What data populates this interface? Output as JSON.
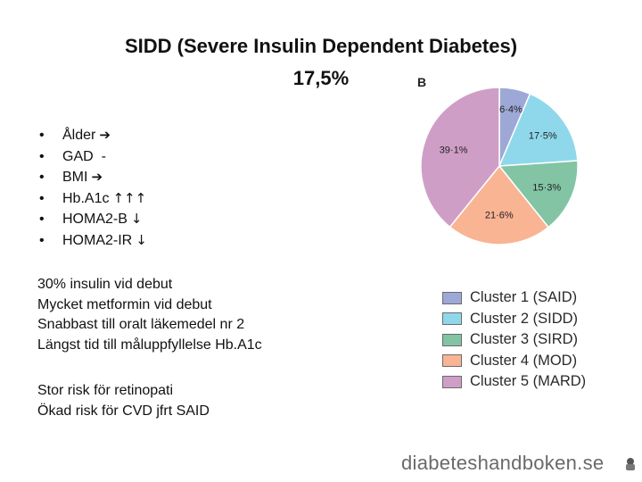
{
  "slide": {
    "title": "SIDD (Severe Insulin Dependent Diabetes)",
    "subtitle": "17,5%",
    "bullets": [
      {
        "text": "Ålder",
        "arrow": "➔"
      },
      {
        "text": "GAD  -",
        "arrow": ""
      },
      {
        "text": "BMI",
        "arrow": "➔"
      },
      {
        "text": "Hb.A1c",
        "arrow": "↑↑↑"
      },
      {
        "text": "HOMA2-B",
        "arrow": "↓"
      },
      {
        "text": "HOMA2-IR",
        "arrow": "↓"
      }
    ],
    "paragraph1": [
      "30% insulin vid debut",
      "Mycket metformin vid debut",
      "Snabbast till oralt läkemedel nr 2",
      "Längst tid till måluppfyllelse Hb.A1c"
    ],
    "paragraph2": [
      "Stor risk för retinopati",
      "Ökad risk för CVD jfrt SAID"
    ],
    "footer": "diabeteshandboken.se"
  },
  "chart_data": {
    "type": "pie",
    "panel_label": "B",
    "slices": [
      {
        "name": "Cluster 1 (SAID)",
        "value": 6.4,
        "label": "6·4%",
        "color": "#9ea8d6"
      },
      {
        "name": "Cluster 2 (SIDD)",
        "value": 17.5,
        "label": "17·5%",
        "color": "#8fd8ec"
      },
      {
        "name": "Cluster 3 (SIRD)",
        "value": 15.3,
        "label": "15·3%",
        "color": "#82c4a4"
      },
      {
        "name": "Cluster 4 (MOD)",
        "value": 21.6,
        "label": "21·6%",
        "color": "#f9b494"
      },
      {
        "name": "Cluster 5 (MARD)",
        "value": 39.1,
        "label": "39·1%",
        "color": "#cf9ec6"
      }
    ],
    "legend_position": "below"
  }
}
